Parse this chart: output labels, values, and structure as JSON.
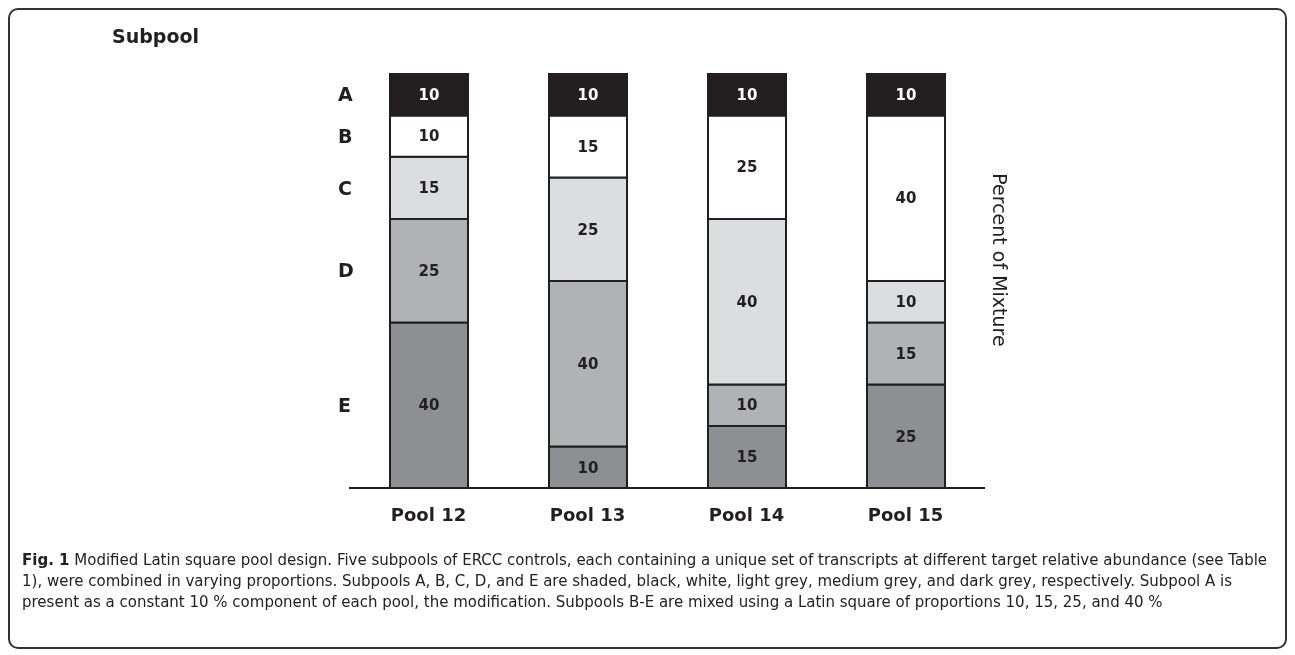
{
  "chart_data": {
    "type": "bar",
    "stacked": true,
    "data_labels": true,
    "legend_title": "Subpool",
    "ylabel": "Percent of Mixture",
    "categories": [
      "Pool 12",
      "Pool 13",
      "Pool 14",
      "Pool 15"
    ],
    "series": [
      {
        "name": "E",
        "color": "#8e8f92",
        "values": [
          40,
          10,
          15,
          25
        ]
      },
      {
        "name": "D",
        "color": "#b1b2b5",
        "values": [
          25,
          40,
          10,
          15
        ]
      },
      {
        "name": "C",
        "color": "#dcdddf",
        "values": [
          15,
          25,
          40,
          10
        ]
      },
      {
        "name": "B",
        "color": "#ffffff",
        "values": [
          10,
          15,
          25,
          40
        ]
      },
      {
        "name": "A",
        "color": "#231f20",
        "values": [
          10,
          10,
          10,
          10
        ]
      }
    ],
    "annotations": [
      "Fig. 1 Modified Latin square pool design. Five subpools of ERCC controls, each containing a unique set of transcripts at different target relative abundance (see Table 1), were combined in varying proportions. Subpools A, B, C, D, and E are shaded, black, white, light grey, medium grey, and dark grey, respectively. Subpool A is present as a constant 10 % component of each pool, the modification. Subpools B-E are mixed using a Latin square of proportions 10, 15, 25, and 40 %"
    ]
  }
}
